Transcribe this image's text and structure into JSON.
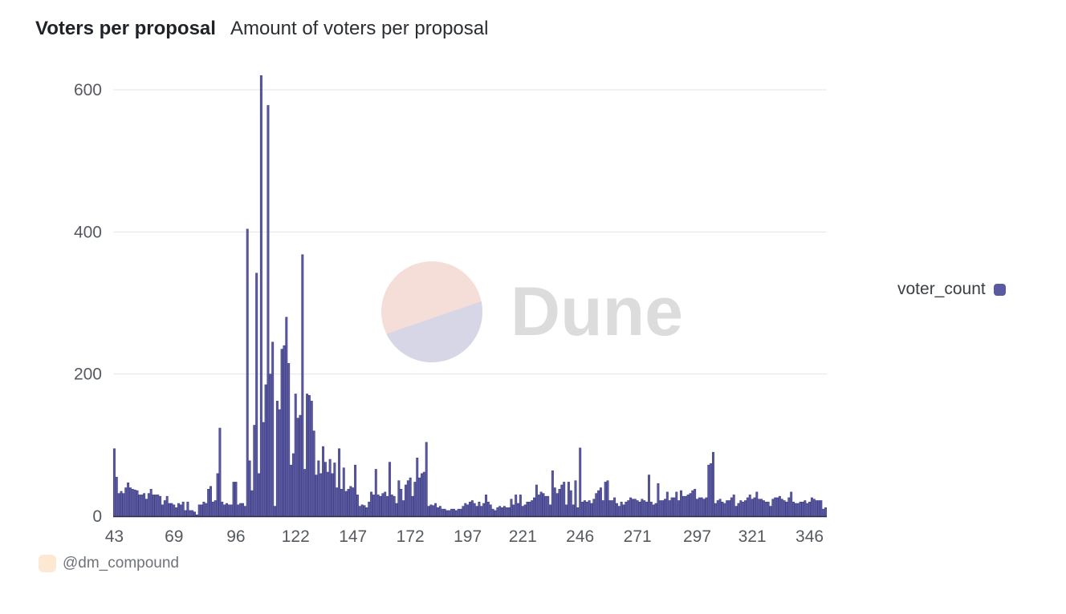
{
  "header": {
    "title": "Voters per proposal",
    "subtitle": "Amount of voters per proposal"
  },
  "watermark": {
    "text": "Dune"
  },
  "legend": {
    "label": "voter_count",
    "color": "#5b5aa0"
  },
  "credit": {
    "text": "@dm_compound"
  },
  "colors": {
    "bar": "#5b5aa0",
    "bar_stroke": "#3e3d86",
    "grid": "#e3e5e8",
    "axis": "#30304a"
  },
  "chart_data": {
    "type": "bar",
    "title": "Voters per proposal",
    "subtitle": "Amount of voters per proposal",
    "xlabel": "",
    "ylabel": "",
    "series_name": "voter_count",
    "x_start": 43,
    "x_end": 368,
    "ylim": [
      0,
      600
    ],
    "yticks": [
      0,
      200,
      400,
      600
    ],
    "xticks": [
      43,
      69,
      96,
      122,
      147,
      172,
      197,
      221,
      246,
      271,
      297,
      321,
      346
    ],
    "grid": true,
    "legend_position": "right",
    "values": [
      95,
      55,
      32,
      35,
      32,
      40,
      47,
      40,
      38,
      37,
      36,
      30,
      30,
      32,
      24,
      32,
      38,
      30,
      30,
      30,
      28,
      16,
      22,
      28,
      18,
      18,
      16,
      12,
      18,
      16,
      20,
      8,
      20,
      8,
      8,
      6,
      2,
      16,
      16,
      20,
      18,
      38,
      42,
      20,
      22,
      60,
      124,
      20,
      16,
      18,
      16,
      16,
      48,
      48,
      16,
      18,
      18,
      14,
      404,
      78,
      36,
      128,
      342,
      60,
      620,
      132,
      185,
      578,
      200,
      245,
      14,
      162,
      150,
      235,
      240,
      280,
      215,
      72,
      88,
      172,
      138,
      142,
      368,
      66,
      172,
      170,
      162,
      120,
      58,
      78,
      60,
      98,
      76,
      62,
      80,
      60,
      75,
      40,
      95,
      38,
      68,
      35,
      38,
      42,
      40,
      72,
      30,
      14,
      16,
      15,
      12,
      20,
      34,
      30,
      66,
      30,
      28,
      32,
      34,
      28,
      76,
      30,
      28,
      18,
      50,
      38,
      22,
      44,
      50,
      54,
      28,
      48,
      82,
      54,
      60,
      62,
      104,
      14,
      16,
      15,
      18,
      12,
      14,
      10,
      10,
      8,
      8,
      10,
      10,
      8,
      10,
      10,
      14,
      18,
      16,
      20,
      22,
      18,
      14,
      20,
      14,
      18,
      30,
      20,
      16,
      10,
      8,
      12,
      14,
      12,
      14,
      12,
      12,
      24,
      16,
      30,
      18,
      30,
      14,
      16,
      20,
      20,
      22,
      26,
      44,
      30,
      34,
      32,
      28,
      28,
      16,
      64,
      40,
      32,
      38,
      44,
      48,
      16,
      48,
      36,
      16,
      50,
      12,
      96,
      20,
      22,
      20,
      22,
      18,
      24,
      32,
      36,
      40,
      22,
      48,
      50,
      22,
      22,
      26,
      18,
      14,
      20,
      16,
      20,
      22,
      26,
      24,
      24,
      22,
      20,
      24,
      22,
      20,
      58,
      20,
      16,
      18,
      46,
      22,
      22,
      24,
      34,
      22,
      26,
      26,
      34,
      22,
      36,
      28,
      28,
      30,
      32,
      36,
      38,
      24,
      26,
      26,
      24,
      26,
      72,
      74,
      90,
      18,
      22,
      24,
      20,
      18,
      22,
      22,
      26,
      30,
      14,
      18,
      22,
      20,
      22,
      26,
      30,
      24,
      26,
      34,
      24,
      24,
      22,
      20,
      20,
      14,
      24,
      26,
      26,
      28,
      24,
      22,
      20,
      26,
      34,
      20,
      18,
      18,
      20,
      20,
      22,
      18,
      20,
      26,
      24,
      22,
      22,
      22,
      10,
      12
    ]
  }
}
